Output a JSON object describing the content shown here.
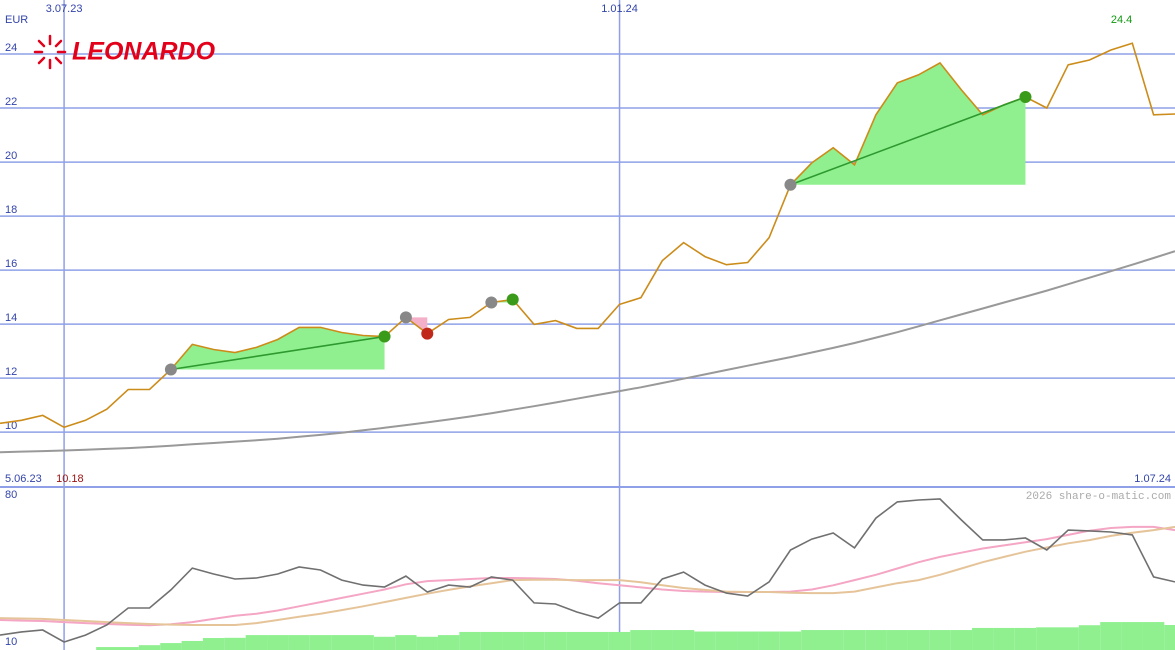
{
  "logo": "LEONARDO",
  "chart_data": [
    {
      "type": "line",
      "unit_label": "EUR",
      "x": [
        1,
        2,
        3,
        4,
        5,
        6,
        7,
        8,
        9,
        10,
        11,
        12,
        13,
        14,
        15,
        16,
        17,
        18,
        19,
        20,
        21,
        22,
        23,
        24,
        25,
        26,
        27,
        28,
        29,
        30,
        31,
        32,
        33,
        34,
        35,
        36,
        37,
        38,
        39,
        40,
        41,
        42,
        43,
        44,
        45,
        46,
        47,
        48,
        49,
        50,
        51,
        52,
        53,
        54,
        55,
        56
      ],
      "xlim": [
        1,
        56
      ],
      "xticks": [
        {
          "value": 4,
          "label": "3.07.23"
        },
        {
          "value": 30,
          "label": "1.01.24"
        }
      ],
      "x_start_label": "5.06.23",
      "x_end_label": "1.07.24",
      "ylim": [
        7.97,
        26
      ],
      "yticks": [
        10,
        12,
        14,
        16,
        18,
        20,
        22,
        24
      ],
      "grid": true,
      "series": [
        {
          "color": "#cc8c1a",
          "values": [
            10.33,
            10.44,
            10.62,
            10.18,
            10.44,
            10.85,
            11.58,
            11.58,
            12.32,
            13.25,
            13.06,
            12.95,
            13.14,
            13.43,
            13.88,
            13.88,
            13.69,
            13.58,
            13.54,
            14.25,
            13.65,
            14.17,
            14.25,
            14.8,
            14.91,
            13.99,
            14.13,
            13.84,
            13.84,
            14.73,
            14.98,
            16.35,
            17.02,
            16.5,
            16.2,
            16.28,
            17.2,
            19.16,
            19.97,
            20.53,
            19.9,
            21.75,
            22.93,
            23.23,
            23.67,
            22.67,
            21.75,
            22.12,
            22.41,
            22.0,
            23.6,
            23.78,
            24.15,
            24.4,
            21.75,
            21.78
          ]
        },
        {
          "color": "#999999",
          "values": [
            9.26,
            9.28,
            9.3,
            9.32,
            9.35,
            9.38,
            9.41,
            9.45,
            9.5,
            9.55,
            9.6,
            9.65,
            9.7,
            9.76,
            9.83,
            9.9,
            9.98,
            10.07,
            10.16,
            10.26,
            10.36,
            10.47,
            10.58,
            10.7,
            10.83,
            10.96,
            11.1,
            11.24,
            11.38,
            11.52,
            11.66,
            11.82,
            11.98,
            12.14,
            12.3,
            12.46,
            12.62,
            12.78,
            12.95,
            13.12,
            13.3,
            13.5,
            13.7,
            13.92,
            14.14,
            14.36,
            14.58,
            14.8,
            15.02,
            15.24,
            15.48,
            15.72,
            15.96,
            16.2,
            16.45,
            16.7
          ]
        }
      ],
      "max_index": 53,
      "max_color": "#119911",
      "min_index": 3,
      "min_color": "#991111",
      "trades": [
        {
          "entry": 9,
          "exit": 19,
          "fill": "#90f090",
          "line": "#2e9a2e",
          "exit_color": "#3a9a1a"
        },
        {
          "entry": 20,
          "exit": 21,
          "fill": "#f4b0c8",
          "exit_color": "#c0281a"
        },
        {
          "entry": 24,
          "exit": 25,
          "fill": "#90f090",
          "exit_color": "#3a9a1a"
        },
        {
          "entry": 38,
          "exit": 49,
          "fill": "#90f090",
          "line": "#2e9a2e",
          "exit_color": "#3a9a1a"
        }
      ],
      "entry_color": "#888888"
    },
    {
      "type": "line",
      "x": [
        1,
        2,
        3,
        4,
        5,
        6,
        7,
        8,
        9,
        10,
        11,
        12,
        13,
        14,
        15,
        16,
        17,
        18,
        19,
        20,
        21,
        22,
        23,
        24,
        25,
        26,
        27,
        28,
        29,
        30,
        31,
        32,
        33,
        34,
        35,
        36,
        37,
        38,
        39,
        40,
        41,
        42,
        43,
        44,
        45,
        46,
        47,
        48,
        49,
        50,
        51,
        52,
        53,
        54,
        55,
        56
      ],
      "xlim": [
        1,
        56
      ],
      "ylim": [
        6.2,
        83.8
      ],
      "yticks": [
        10,
        80
      ],
      "credit": "2026 share-o-matic.com",
      "bars": {
        "color": "#90f090",
        "values": [
          null,
          null,
          null,
          null,
          null,
          7.6,
          7.6,
          8.5,
          9.5,
          10.5,
          11.9,
          12,
          13.3,
          13.3,
          13.3,
          13.3,
          13.3,
          13.3,
          12.5,
          13.3,
          12.5,
          13.3,
          14.8,
          14.8,
          14.8,
          14.8,
          14.8,
          14.8,
          14.8,
          14.8,
          15.7,
          15.7,
          15.7,
          15,
          15,
          15,
          15,
          15,
          15.7,
          15.7,
          15.7,
          15.7,
          15.7,
          15.7,
          15.7,
          15.7,
          16.7,
          16.7,
          16.7,
          17,
          17,
          18,
          19.5,
          19.5,
          19.5,
          18.1
        ]
      },
      "series": [
        {
          "color": "#f4a6c4",
          "values": [
            20.5,
            20.2,
            20,
            19.5,
            19,
            18.6,
            18.2,
            18,
            18.5,
            19.5,
            21,
            22.5,
            23.5,
            25,
            27,
            29,
            31,
            33,
            35,
            37.5,
            39,
            39.5,
            40,
            40.5,
            40.5,
            40.3,
            40,
            39.2,
            38,
            37,
            36,
            35,
            34.3,
            34,
            33.8,
            33.8,
            33.8,
            34,
            35,
            37,
            39.5,
            42,
            45,
            48,
            50.5,
            52.5,
            54.5,
            56,
            57.5,
            59,
            61,
            63,
            64.3,
            64.8,
            64.8,
            63.3
          ]
        },
        {
          "color": "#e6c49a",
          "values": [
            21.4,
            21.2,
            21,
            20.5,
            20,
            19.5,
            19,
            18.6,
            18.3,
            18.1,
            18.1,
            18.1,
            19,
            20.5,
            22,
            23.5,
            25.2,
            27,
            29,
            31,
            33,
            34.8,
            36.5,
            38,
            39.5,
            39.6,
            39.6,
            39.5,
            39.5,
            39.5,
            38.5,
            37,
            35.7,
            34.8,
            34,
            33.8,
            33.8,
            33.5,
            33.3,
            33.3,
            34,
            36,
            38,
            39.5,
            42,
            45,
            48,
            50.5,
            53,
            55,
            57,
            58.5,
            60.5,
            62,
            63.3,
            64.8
          ]
        },
        {
          "color": "#707070",
          "values": [
            13.3,
            14.8,
            15.7,
            10,
            13.3,
            18.1,
            26.2,
            26.2,
            34.8,
            45.2,
            42.4,
            40,
            40.5,
            42.4,
            45.7,
            44.3,
            39.5,
            37.1,
            36.2,
            41.4,
            33.8,
            37.1,
            36.2,
            41,
            39.5,
            28.6,
            28.1,
            24.3,
            21.4,
            28.6,
            28.6,
            40,
            43.3,
            37.1,
            33.3,
            31.9,
            38.6,
            53.8,
            59,
            61.9,
            54.8,
            69,
            76.7,
            77.6,
            78.1,
            68.1,
            58.6,
            58.6,
            59.5,
            53.8,
            63.3,
            62.9,
            62.4,
            61,
            41,
            38.6
          ]
        }
      ]
    }
  ]
}
